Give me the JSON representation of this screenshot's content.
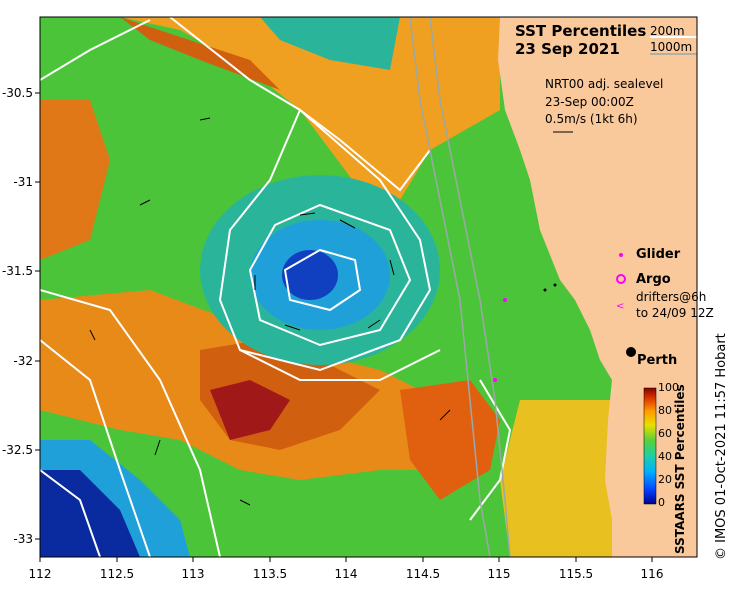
{
  "title": {
    "line1": "SST Percentiles",
    "line2": "23 Sep 2021"
  },
  "contours": {
    "c1": "200m",
    "c2": "1000m"
  },
  "currents": {
    "line1": "NRT00 adj. sealevel",
    "line2": "23-Sep 00:00Z",
    "line3": "0.5m/s (1kt 6h)"
  },
  "legend": {
    "glider": "Glider",
    "argo": "Argo",
    "drifters1": "drifters@6h",
    "drifters2": "to 24/09 12Z"
  },
  "place": {
    "perth": "Perth"
  },
  "colorbar": {
    "title": "SSTAARS SST Percentiles",
    "ticks": [
      "100",
      "80",
      "60",
      "40",
      "20",
      "0"
    ]
  },
  "credit": "© IMOS 01-Oct-2021 11:57 Hobart",
  "axes": {
    "x_ticks": [
      "112",
      "112.5",
      "113",
      "113.5",
      "114",
      "114.5",
      "115",
      "115.5",
      "116"
    ],
    "y_ticks": [
      "-30.5",
      "-31",
      "-31.5",
      "-32",
      "-32.5",
      "-33"
    ]
  },
  "colors": {
    "land": "#f9c89b",
    "contour": "#ffffff",
    "glider": "#ff00ff",
    "argo": "#ff00ff"
  }
}
